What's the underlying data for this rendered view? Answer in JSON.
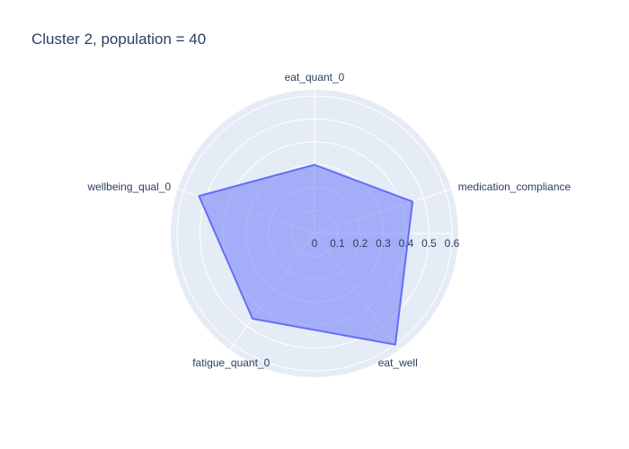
{
  "chart_data": {
    "type": "radar",
    "title": "Cluster 2, population = 40",
    "axes": [
      "eat_quant_0",
      "medication_compliance",
      "eat_well",
      "fatigue_quant_0",
      "wellbeing_qual_0"
    ],
    "series": [
      {
        "values": [
          0.3,
          0.45,
          0.6,
          0.46,
          0.53
        ]
      }
    ],
    "radial_range": [
      0,
      0.6
    ],
    "radial_ticks": [
      "0",
      "0.1",
      "0.2",
      "0.3",
      "0.4",
      "0.5",
      "0.6"
    ],
    "grid": true,
    "legend": "none",
    "colors": {
      "polar_background": "#e5ecf6",
      "grid": "#ffffff",
      "series_line": "#636efa",
      "series_fill": "rgba(99,110,250,0.5)",
      "text": "#2a3f5f"
    }
  }
}
